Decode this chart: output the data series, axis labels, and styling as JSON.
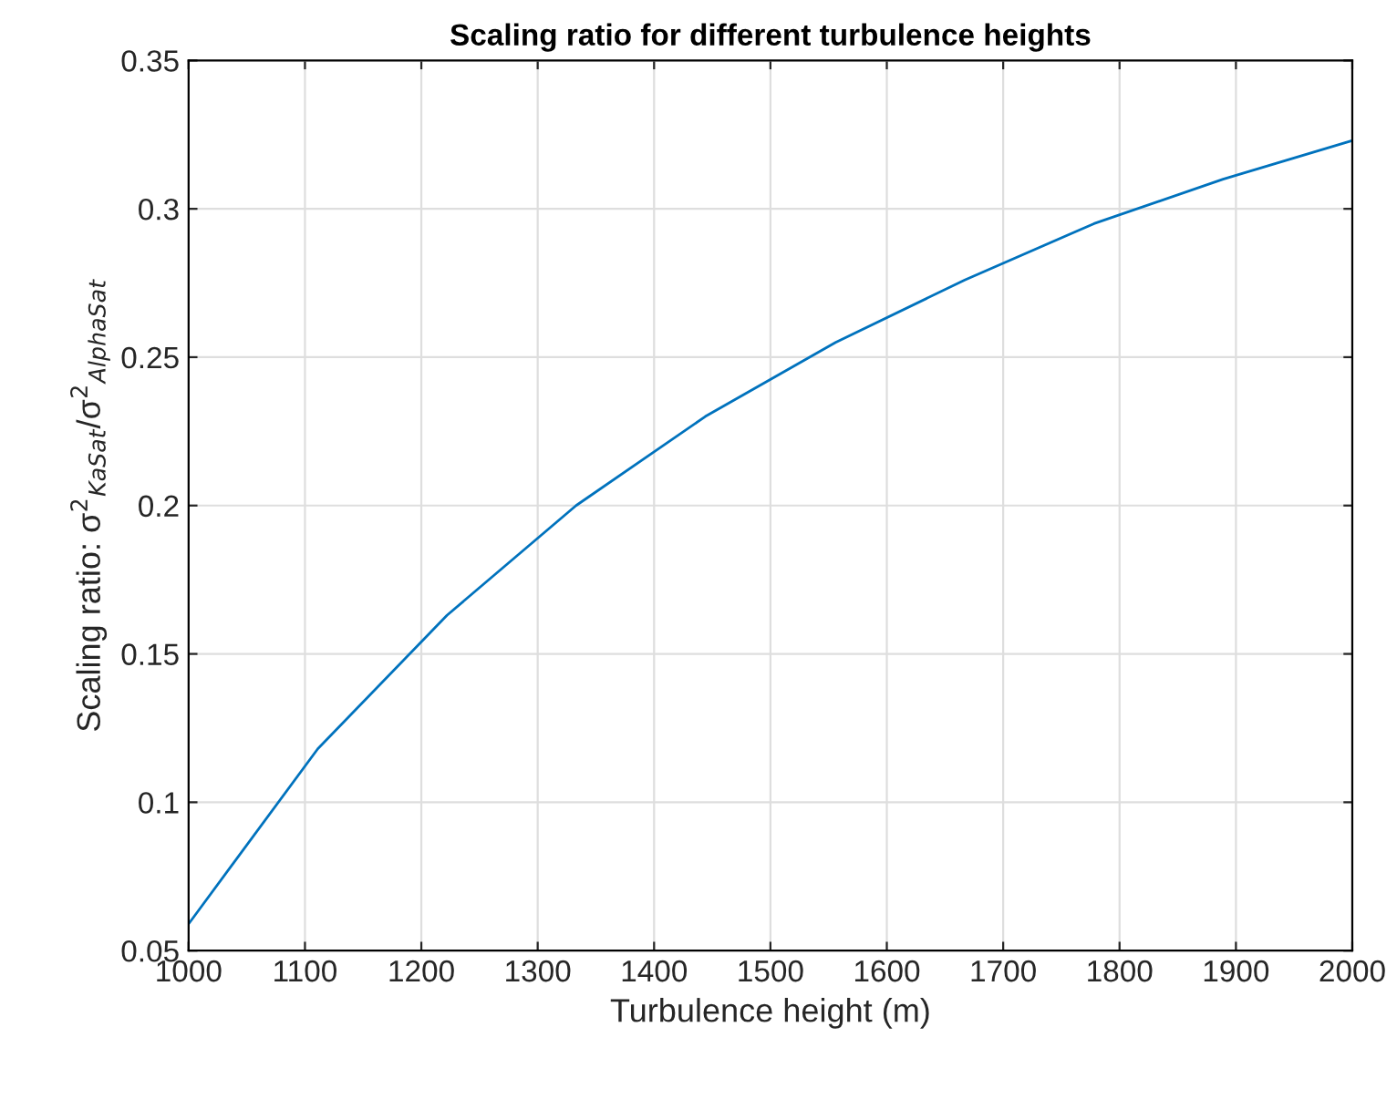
{
  "chart_data": {
    "type": "line",
    "title": "Scaling ratio for different turbulence heights",
    "xlabel": "Turbulence height (m)",
    "ylabel": "Scaling ratio: σ$^{2}$$_{KaSat}$/σ$^{2}$$_{AlphaSat}$",
    "x": [
      1000,
      1111,
      1222,
      1333,
      1444,
      1556,
      1667,
      1778,
      1889,
      2000
    ],
    "series": [
      {
        "color": "#0072bd",
        "values": [
          0.059,
          0.118,
          0.163,
          0.2,
          0.23,
          0.255,
          0.276,
          0.295,
          0.31,
          0.323
        ]
      }
    ],
    "xlim": [
      1000,
      2000
    ],
    "xticks": [
      1000,
      1100,
      1200,
      1300,
      1400,
      1500,
      1600,
      1700,
      1800,
      1900,
      2000
    ],
    "ylim": [
      0.05,
      0.35
    ],
    "yticks": [
      0.05,
      0.1,
      0.15,
      0.2,
      0.25,
      0.3,
      0.35
    ],
    "grid": true,
    "marker": "none",
    "line_style": "solid"
  }
}
